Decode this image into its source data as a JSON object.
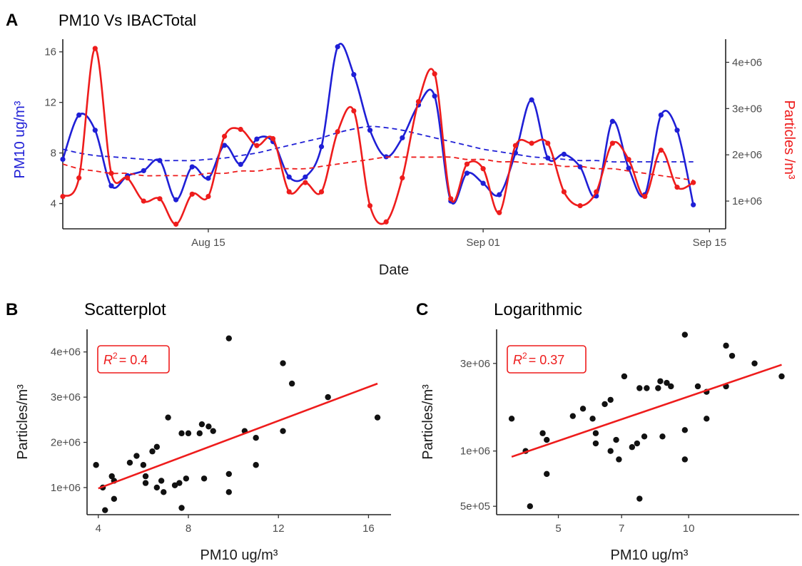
{
  "chart_data": [
    {
      "panel": "A",
      "type": "line",
      "title": "PM10 Vs IBACTotal",
      "xlabel": "Date",
      "ylabel": "PM10 ug/m³",
      "y2label": "Particles /m³",
      "xlim": [
        "2018-08-06",
        "2018-09-16"
      ],
      "ylim": [
        2,
        17
      ],
      "y2lim": [
        400000,
        4500000
      ],
      "xticks": [
        {
          "label": "Aug 15",
          "x": "2018-08-15"
        },
        {
          "label": "Sep 01",
          "x": "2018-09-01"
        },
        {
          "label": "Sep 15",
          "x": "2018-09-15"
        }
      ],
      "yticks": [
        4,
        8,
        12,
        16
      ],
      "y2ticks": [
        {
          "label": "1e+06",
          "v": 1000000
        },
        {
          "label": "2e+06",
          "v": 2000000
        },
        {
          "label": "3e+06",
          "v": 3000000
        },
        {
          "label": "4e+06",
          "v": 4000000
        }
      ],
      "grid": false,
      "series": [
        {
          "name": "PM10",
          "axis": "left",
          "color": "#1f1fd6",
          "x": [
            "2018-08-06",
            "2018-08-07",
            "2018-08-08",
            "2018-08-09",
            "2018-08-10",
            "2018-08-11",
            "2018-08-12",
            "2018-08-13",
            "2018-08-14",
            "2018-08-15",
            "2018-08-16",
            "2018-08-17",
            "2018-08-18",
            "2018-08-19",
            "2018-08-20",
            "2018-08-21",
            "2018-08-22",
            "2018-08-23",
            "2018-08-24",
            "2018-08-25",
            "2018-08-26",
            "2018-08-27",
            "2018-08-28",
            "2018-08-29",
            "2018-08-30",
            "2018-08-31",
            "2018-09-01",
            "2018-09-02",
            "2018-09-03",
            "2018-09-04",
            "2018-09-05",
            "2018-09-06",
            "2018-09-07",
            "2018-09-08",
            "2018-09-09",
            "2018-09-10",
            "2018-09-11",
            "2018-09-12",
            "2018-09-13",
            "2018-09-14",
            "2018-09-15"
          ],
          "values": [
            7.5,
            11.0,
            9.8,
            5.4,
            6.2,
            6.6,
            7.4,
            4.3,
            6.9,
            6.0,
            8.6,
            7.1,
            9.1,
            8.9,
            6.1,
            6.1,
            8.5,
            16.4,
            14.2,
            9.8,
            7.7,
            9.2,
            11.8,
            12.5,
            4.2,
            6.4,
            5.6,
            4.7,
            8.0,
            12.2,
            7.6,
            7.9,
            6.9,
            4.6,
            10.5,
            6.8,
            4.7,
            11.0,
            9.8,
            3.9,
            null
          ],
          "trend": [
            8.3,
            8.0,
            7.8,
            7.7,
            7.6,
            7.5,
            7.4,
            7.4,
            7.4,
            7.5,
            7.6,
            7.8,
            8.0,
            8.3,
            8.6,
            8.9,
            9.2,
            9.6,
            9.9,
            10.1,
            10.0,
            9.8,
            9.5,
            9.2,
            8.9,
            8.6,
            8.3,
            8.1,
            7.9,
            7.7,
            7.6,
            7.5,
            7.4,
            7.4,
            7.3,
            7.3,
            7.3,
            7.3,
            7.3,
            7.3,
            null
          ]
        },
        {
          "name": "Particles",
          "axis": "right",
          "color": "#ee1c1c",
          "x": [
            "2018-08-06",
            "2018-08-07",
            "2018-08-08",
            "2018-08-09",
            "2018-08-10",
            "2018-08-11",
            "2018-08-12",
            "2018-08-13",
            "2018-08-14",
            "2018-08-15",
            "2018-08-16",
            "2018-08-17",
            "2018-08-18",
            "2018-08-19",
            "2018-08-20",
            "2018-08-21",
            "2018-08-22",
            "2018-08-23",
            "2018-08-24",
            "2018-08-25",
            "2018-08-26",
            "2018-08-27",
            "2018-08-28",
            "2018-08-29",
            "2018-08-30",
            "2018-08-31",
            "2018-09-01",
            "2018-09-02",
            "2018-09-03",
            "2018-09-04",
            "2018-09-05",
            "2018-09-06",
            "2018-09-07",
            "2018-09-08",
            "2018-09-09",
            "2018-09-10",
            "2018-09-11",
            "2018-09-12",
            "2018-09-13",
            "2018-09-14",
            "2018-09-15"
          ],
          "values": [
            1100000,
            1500000,
            4300000,
            1600000,
            1500000,
            1000000,
            1050000,
            500000,
            1150000,
            1100000,
            2400000,
            2550000,
            2200000,
            2350000,
            1200000,
            1400000,
            1200000,
            2500000,
            2950000,
            900000,
            550000,
            1500000,
            3150000,
            3750000,
            1050000,
            1800000,
            1700000,
            750000,
            2200000,
            2250000,
            2250000,
            1200000,
            900000,
            1200000,
            2250000,
            1900000,
            1100000,
            2100000,
            1300000,
            1400000,
            null
          ],
          "trend": [
            1800000,
            1700000,
            1650000,
            1600000,
            1600000,
            1550000,
            1550000,
            1550000,
            1550000,
            1600000,
            1600000,
            1650000,
            1650000,
            1700000,
            1700000,
            1700000,
            1750000,
            1800000,
            1850000,
            1900000,
            1950000,
            1950000,
            1950000,
            1950000,
            1950000,
            1900000,
            1900000,
            1850000,
            1850000,
            1800000,
            1800000,
            1750000,
            1750000,
            1700000,
            1700000,
            1650000,
            1600000,
            1550000,
            1500000,
            1450000,
            null
          ]
        }
      ]
    },
    {
      "panel": "B",
      "type": "scatter",
      "title": "Scatterplot",
      "xlabel": "PM10 ug/m³",
      "ylabel": "Particles/m³",
      "xlim": [
        3.5,
        17
      ],
      "ylim": [
        400000,
        4500000
      ],
      "xticks": [
        4,
        8,
        12,
        16
      ],
      "yticks": [
        {
          "label": "1e+06",
          "v": 1000000
        },
        {
          "label": "2e+06",
          "v": 2000000
        },
        {
          "label": "3e+06",
          "v": 3000000
        },
        {
          "label": "4e+06",
          "v": 4000000
        }
      ],
      "annotation": {
        "r2_symbol": "R",
        "r2_exp": "2",
        "r2_value": "= 0.4",
        "color": "#ee1c1c"
      },
      "fit": {
        "x": [
          4,
          16.4
        ],
        "y": [
          980000,
          3300000
        ],
        "color": "#ee1c1c"
      },
      "points": [
        [
          3.9,
          1500000
        ],
        [
          4.2,
          1000000
        ],
        [
          4.3,
          500000
        ],
        [
          4.6,
          1250000
        ],
        [
          4.7,
          1150000
        ],
        [
          4.7,
          750000
        ],
        [
          5.4,
          1550000
        ],
        [
          5.7,
          1700000
        ],
        [
          6.0,
          1500000
        ],
        [
          6.1,
          1100000
        ],
        [
          6.1,
          1250000
        ],
        [
          6.4,
          1800000
        ],
        [
          6.6,
          1900000
        ],
        [
          6.6,
          1000000
        ],
        [
          6.8,
          1150000
        ],
        [
          6.9,
          900000
        ],
        [
          7.1,
          2550000
        ],
        [
          7.4,
          1050000
        ],
        [
          7.6,
          1100000
        ],
        [
          7.7,
          550000
        ],
        [
          7.7,
          2200000
        ],
        [
          7.9,
          1200000
        ],
        [
          8.0,
          2200000
        ],
        [
          8.5,
          2200000
        ],
        [
          8.6,
          2400000
        ],
        [
          8.9,
          2350000
        ],
        [
          9.1,
          2250000
        ],
        [
          9.8,
          1300000
        ],
        [
          9.8,
          900000
        ],
        [
          9.8,
          4300000
        ],
        [
          10.5,
          2250000
        ],
        [
          11.0,
          2100000
        ],
        [
          11.0,
          1500000
        ],
        [
          12.2,
          2250000
        ],
        [
          12.2,
          3750000
        ],
        [
          12.6,
          3300000
        ],
        [
          14.2,
          3000000
        ],
        [
          16.4,
          2550000
        ],
        [
          8.7,
          1200000
        ]
      ]
    },
    {
      "panel": "C",
      "type": "scatter",
      "title": "Logarithmic",
      "xlabel": "PM10 ug/m³",
      "ylabel": "Particles/m³",
      "xscale": "log",
      "yscale": "log",
      "xlim": [
        3.6,
        18
      ],
      "ylim": [
        450000,
        4600000
      ],
      "xticks": [
        5,
        7,
        10
      ],
      "yticks": [
        {
          "label": "5e+05",
          "v": 500000
        },
        {
          "label": "1e+06",
          "v": 1000000
        },
        {
          "label": "3e+06",
          "v": 3000000
        }
      ],
      "annotation": {
        "r2_symbol": "R",
        "r2_exp": "2",
        "r2_value": "= 0.37",
        "color": "#ee1c1c"
      },
      "fit": {
        "x": [
          3.9,
          16.4
        ],
        "y": [
          930000,
          2950000
        ],
        "color": "#ee1c1c"
      },
      "points": [
        [
          3.9,
          1500000
        ],
        [
          4.2,
          1000000
        ],
        [
          4.3,
          500000
        ],
        [
          4.6,
          1250000
        ],
        [
          4.7,
          1150000
        ],
        [
          4.7,
          750000
        ],
        [
          5.4,
          1550000
        ],
        [
          5.7,
          1700000
        ],
        [
          6.0,
          1500000
        ],
        [
          6.1,
          1100000
        ],
        [
          6.1,
          1250000
        ],
        [
          6.4,
          1800000
        ],
        [
          6.6,
          1900000
        ],
        [
          6.6,
          1000000
        ],
        [
          6.8,
          1150000
        ],
        [
          6.9,
          900000
        ],
        [
          7.1,
          2550000
        ],
        [
          7.4,
          1050000
        ],
        [
          7.6,
          1100000
        ],
        [
          7.7,
          550000
        ],
        [
          7.7,
          2200000
        ],
        [
          7.9,
          1200000
        ],
        [
          8.0,
          2200000
        ],
        [
          8.5,
          2200000
        ],
        [
          8.6,
          2400000
        ],
        [
          8.9,
          2350000
        ],
        [
          9.1,
          2250000
        ],
        [
          9.8,
          1300000
        ],
        [
          9.8,
          900000
        ],
        [
          9.8,
          4300000
        ],
        [
          10.5,
          2250000
        ],
        [
          11.0,
          2100000
        ],
        [
          11.0,
          1500000
        ],
        [
          12.2,
          2250000
        ],
        [
          12.2,
          3750000
        ],
        [
          12.6,
          3300000
        ],
        [
          14.2,
          3000000
        ],
        [
          16.4,
          2550000
        ],
        [
          8.7,
          1200000
        ]
      ]
    }
  ]
}
